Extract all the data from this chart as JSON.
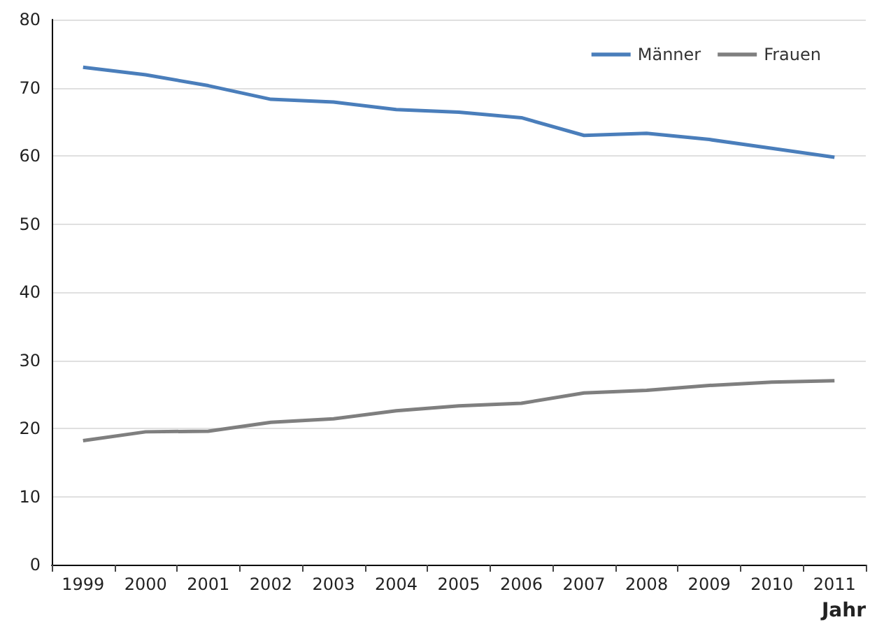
{
  "chart_data": {
    "type": "line",
    "xlabel": "Jahr",
    "categories": [
      "1999",
      "2000",
      "2001",
      "2002",
      "2003",
      "2004",
      "2005",
      "2006",
      "2007",
      "2008",
      "2009",
      "2010",
      "2011"
    ],
    "series": [
      {
        "name": "Männer",
        "color": "#4a7ebb",
        "values": [
          73.0,
          71.9,
          70.3,
          68.3,
          67.9,
          66.8,
          66.4,
          65.6,
          63.0,
          63.3,
          62.4,
          61.1,
          59.8
        ]
      },
      {
        "name": "Frauen",
        "color": "#7f7f7f",
        "values": [
          18.2,
          19.5,
          19.6,
          20.9,
          21.4,
          22.6,
          23.3,
          23.7,
          25.2,
          25.6,
          26.3,
          26.8,
          27.0
        ]
      }
    ],
    "ylim": [
      0,
      80
    ],
    "yticks": [
      0,
      10,
      20,
      30,
      40,
      50,
      60,
      70,
      80
    ],
    "grid": "y",
    "legend": "top right",
    "marker": "none",
    "line_style": "solid"
  }
}
